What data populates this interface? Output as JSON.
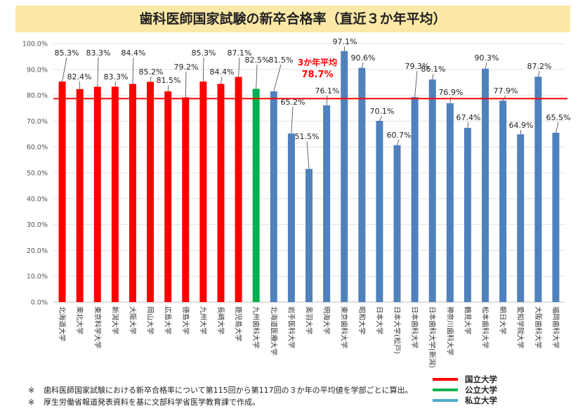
{
  "title": "歯科医師国家試験の新卒合格率（直近３か年平均）",
  "colors": {
    "national": "#ff0000",
    "public": "#00b050",
    "private": "#4f81bd",
    "avg_line": "#ff0000",
    "title_bg": "#fce9a8"
  },
  "chart_data": {
    "type": "bar",
    "ylim": [
      0,
      100
    ],
    "yticks": [
      "0.0%",
      "10.0%",
      "20.0%",
      "30.0%",
      "40.0%",
      "50.0%",
      "60.0%",
      "70.0%",
      "80.0%",
      "90.0%",
      "100.0%"
    ],
    "grid": true,
    "categories": [
      "北海道大学",
      "東北大学",
      "東京科学大学",
      "新潟大学",
      "大阪大学",
      "岡山大学",
      "広島大学",
      "徳島大学",
      "九州大学",
      "長崎大学",
      "鹿児島大学",
      "九州歯科大学",
      "北海道医療大学",
      "岩手医科大学",
      "奥羽大学",
      "明海大学",
      "東京歯科大学",
      "昭和大学",
      "日本大学",
      "日本大学(松戸)",
      "日本歯科大学",
      "日本歯科大学(新潟)",
      "神奈川歯科大学",
      "鶴見大学",
      "松本歯科大学",
      "朝日大学",
      "愛知学院大学",
      "大阪歯科大学",
      "福岡歯科大学"
    ],
    "values": [
      85.3,
      82.4,
      83.3,
      83.3,
      84.4,
      85.2,
      81.5,
      79.2,
      85.3,
      84.4,
      87.1,
      82.5,
      81.5,
      65.2,
      51.5,
      76.1,
      97.1,
      90.6,
      70.1,
      60.7,
      79.3,
      86.1,
      76.9,
      67.4,
      90.3,
      77.9,
      64.9,
      87.2,
      65.5
    ],
    "value_labels": [
      "85.3%",
      "82.4%",
      "83.3%",
      "83.3%",
      "84.4%",
      "85.2%",
      "81.5%",
      "79.2%",
      "85.3%",
      "84.4%",
      "87.1%",
      "82.5%",
      "81.5%",
      "65.2%",
      "51.5%",
      "76.1%",
      "97.1%",
      "90.6%",
      "70.1%",
      "60.7%",
      "79.3%",
      "86.1%",
      "76.9%",
      "67.4%",
      "90.3%",
      "77.9%",
      "64.9%",
      "87.2%",
      "65.5%"
    ],
    "groups": [
      "national",
      "national",
      "national",
      "national",
      "national",
      "national",
      "national",
      "national",
      "national",
      "national",
      "national",
      "public",
      "private",
      "private",
      "private",
      "private",
      "private",
      "private",
      "private",
      "private",
      "private",
      "private",
      "private",
      "private",
      "private",
      "private",
      "private",
      "private",
      "private"
    ],
    "average": {
      "value": 78.7,
      "label_line1": "3か年平均",
      "label_line2": "78.7%"
    }
  },
  "legend": [
    {
      "key": "national",
      "label": "国立大学"
    },
    {
      "key": "public",
      "label": "公立大学"
    },
    {
      "key": "private",
      "label": "私立大学"
    }
  ],
  "legend_colors": {
    "national": "#ff0000",
    "public": "#00b050",
    "private": "#4bacc6"
  },
  "notes": [
    {
      "mark": "※",
      "text": "歯科医師国家試験における新卒合格率について第115回から第117回の３か年の平均値を学部ごとに算出。"
    },
    {
      "mark": "※",
      "text": "厚生労働省報道発表資料を基に文部科学省医学教育課で作成。"
    }
  ]
}
